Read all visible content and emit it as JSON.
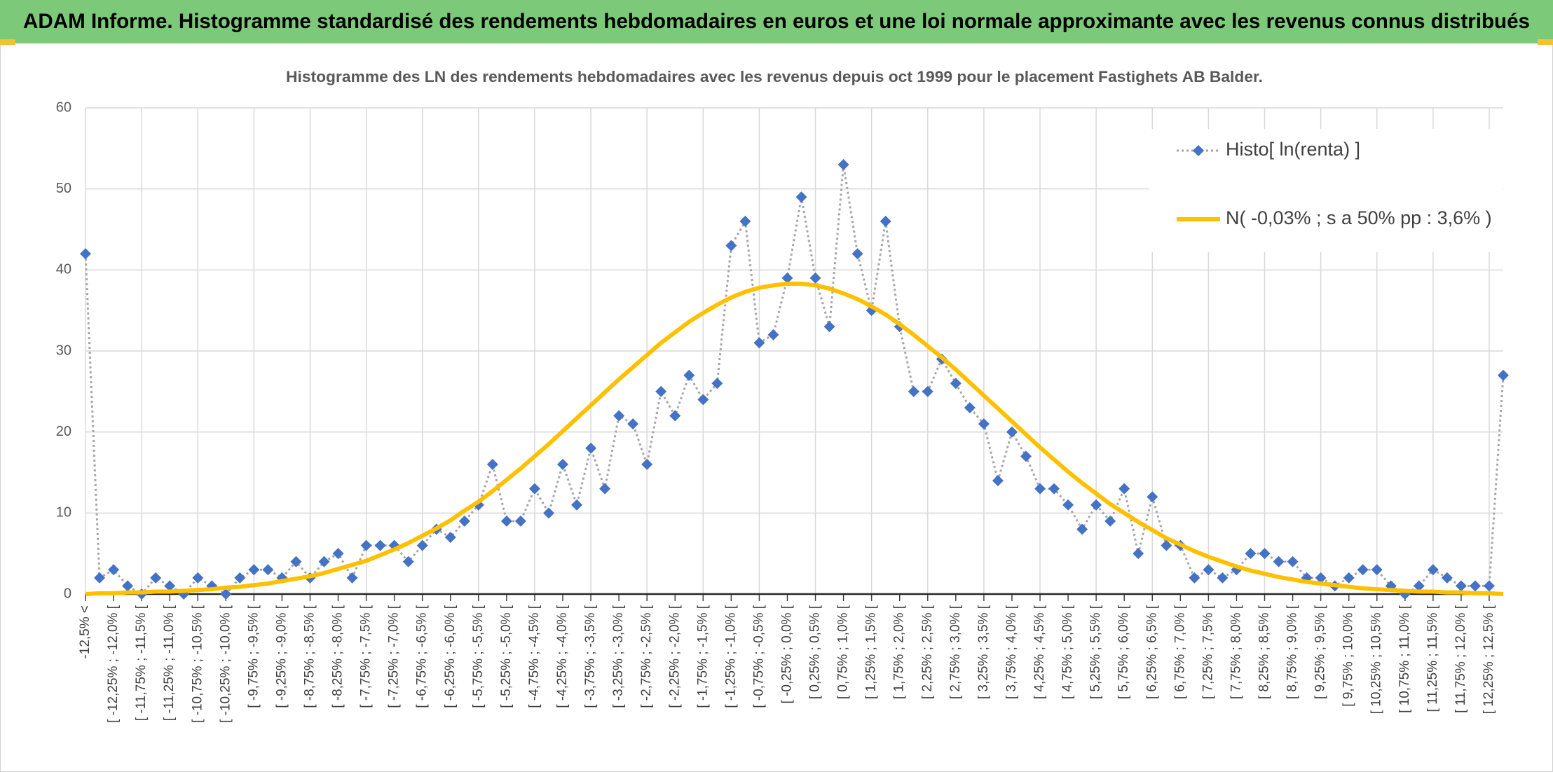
{
  "chart_data": {
    "type": "line",
    "title": "ADAM Informe. Histogramme standardisé des rendements hebdomadaires en euros et une loi normale approximante avec les revenus connus distribués",
    "subtitle": "Histogramme des LN des rendements hebdomadaires avec les revenus depuis oct 1999 pour le placement Fastighets AB Balder.",
    "categories": [
      "-12,5% <",
      null,
      "[ -12,25% ; -12,0% [",
      null,
      "[ -11,75% ; -11,5% [",
      null,
      "[ -11,25% ; -11,0% [",
      null,
      "[ -10,75% ; -10,5% [",
      null,
      "[ -10,25% ; -10,0% [",
      null,
      "[ -9,75% ; -9,5% [",
      null,
      "[ -9,25% ; -9,0% [",
      null,
      "[ -8,75% ; -8,5% [",
      null,
      "[ -8,25% ; -8,0% [",
      null,
      "[ -7,75% ; -7,5% [",
      null,
      "[ -7,25% ; -7,0% [",
      null,
      "[ -6,75% ; -6,5% [",
      null,
      "[ -6,25% ; -6,0% [",
      null,
      "[ -5,75% ; -5,5% [",
      null,
      "[ -5,25% ; -5,0% [",
      null,
      "[ -4,75% ; -4,5% [",
      null,
      "[ -4,25% ; -4,0% [",
      null,
      "[ -3,75% ; -3,5% [",
      null,
      "[ -3,25% ; -3,0% [",
      null,
      "[ -2,75% ; -2,5% [",
      null,
      "[ -2,25% ; -2,0% [",
      null,
      "[ -1,75% ; -1,5% [",
      null,
      "[ -1,25% ; -1,0% [",
      null,
      "[ -0,75% ; -0,5% [",
      null,
      "[ -0,25% ; 0,0% [",
      null,
      "[ 0,25% ; 0,5% [",
      null,
      "[ 0,75% ; 1,0% [",
      null,
      "[ 1,25% ; 1,5% [",
      null,
      "[ 1,75% ; 2,0% [",
      null,
      "[ 2,25% ; 2,5% [",
      null,
      "[ 2,75% ; 3,0% [",
      null,
      "[ 3,25% ; 3,5% [",
      null,
      "[ 3,75% ; 4,0% [",
      null,
      "[ 4,25% ; 4,5% [",
      null,
      "[ 4,75% ; 5,0% [",
      null,
      "[ 5,25% ; 5,5% [",
      null,
      "[ 5,75% ; 6,0% [",
      null,
      "[ 6,25% ; 6,5% [",
      null,
      "[ 6,75% ; 7,0% [",
      null,
      "[ 7,25% ; 7,5% [",
      null,
      "[ 7,75% ; 8,0% [",
      null,
      "[ 8,25% ; 8,5% [",
      null,
      "[ 8,75% ; 9,0% [",
      null,
      "[ 9,25% ; 9,5% [",
      null,
      "[ 9,75% ; 10,0% [",
      null,
      "[ 10,25% ; 10,5% [",
      null,
      "[ 10,75% ; 11,0% [",
      null,
      "[ 11,25% ; 11,5% [",
      null,
      "[ 11,75% ; 12,0% [",
      null,
      "[ 12,25% ; 12,5% [",
      null
    ],
    "series": [
      {
        "name": "Histo[ ln(renta) ]",
        "color": "#4472c4",
        "line_color": "#a5a5a5",
        "marker": "diamond",
        "line_style": "dotted",
        "values": [
          42,
          2,
          3,
          1,
          0,
          2,
          1,
          0,
          2,
          1,
          0,
          2,
          3,
          3,
          2,
          4,
          2,
          4,
          5,
          2,
          6,
          6,
          6,
          4,
          6,
          8,
          7,
          9,
          11,
          16,
          9,
          9,
          13,
          10,
          16,
          11,
          18,
          13,
          22,
          21,
          16,
          25,
          22,
          27,
          24,
          26,
          43,
          46,
          31,
          32,
          39,
          49,
          39,
          33,
          53,
          42,
          35,
          46,
          33,
          25,
          25,
          29,
          26,
          23,
          21,
          14,
          20,
          17,
          13,
          13,
          11,
          8,
          11,
          9,
          13,
          5,
          12,
          6,
          6,
          2,
          3,
          2,
          3,
          5,
          5,
          4,
          4,
          2,
          2,
          1,
          2,
          3,
          3,
          1,
          0,
          1,
          3,
          2,
          1,
          1,
          1,
          27
        ]
      },
      {
        "name": "N( -0,03% ; s a 50% pp : 3,6% )",
        "color": "#ffc000",
        "line_style": "solid",
        "values": [
          0,
          0.1,
          0.1,
          0.2,
          0.2,
          0.3,
          0.3,
          0.4,
          0.5,
          0.6,
          0.8,
          0.9,
          1.1,
          1.3,
          1.6,
          1.9,
          2.2,
          2.6,
          3.1,
          3.6,
          4.1,
          4.8,
          5.5,
          6.3,
          7.2,
          8.1,
          9.1,
          10.3,
          11.4,
          12.7,
          14.1,
          15.5,
          17.0,
          18.5,
          20.1,
          21.7,
          23.3,
          24.9,
          26.5,
          28.0,
          29.5,
          31.0,
          32.3,
          33.6,
          34.7,
          35.7,
          36.6,
          37.3,
          37.8,
          38.1,
          38.3,
          38.3,
          38.1,
          37.7,
          37.1,
          36.4,
          35.5,
          34.5,
          33.3,
          32.0,
          30.6,
          29.2,
          27.7,
          26.1,
          24.5,
          22.9,
          21.3,
          19.7,
          18.1,
          16.6,
          15.1,
          13.7,
          12.4,
          11.1,
          10.0,
          8.9,
          7.9,
          6.9,
          6.1,
          5.3,
          4.6,
          4.0,
          3.4,
          2.9,
          2.5,
          2.1,
          1.8,
          1.5,
          1.3,
          1.1,
          0.9,
          0.7,
          0.6,
          0.5,
          0.4,
          0.3,
          0.3,
          0.2,
          0.2,
          0.1,
          0.1,
          0
        ]
      }
    ],
    "ylim": [
      0,
      60
    ],
    "yticks": [
      0,
      10,
      20,
      30,
      40,
      50,
      60
    ],
    "grid": true,
    "legend": "top-right"
  }
}
